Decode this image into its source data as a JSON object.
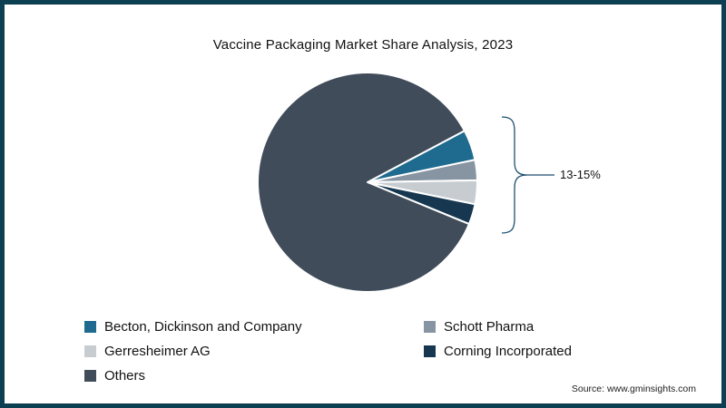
{
  "frame": {
    "border_color": "#0d3f52"
  },
  "chart_data": {
    "type": "pie",
    "title": "Vaccine Packaging Market Share Analysis, 2023",
    "units": "percent",
    "start_angle_deg": -28,
    "legend_position": "bottom",
    "series": [
      {
        "name": "Becton, Dickinson and Company",
        "value": 4.5,
        "color": "#1f6a8f"
      },
      {
        "name": "Schott Pharma",
        "value": 3.0,
        "color": "#8795a3"
      },
      {
        "name": "Gerresheimer AG",
        "value": 3.5,
        "color": "#c7ccd1"
      },
      {
        "name": "Corning Incorporated",
        "value": 3.0,
        "color": "#16374f"
      },
      {
        "name": "Others",
        "value": 86.0,
        "color": "#404c5a"
      }
    ],
    "annotation": {
      "label": "13-15%",
      "line_color": "#1d4f6e",
      "applies_to": [
        "Becton, Dickinson and Company",
        "Schott Pharma",
        "Gerresheimer AG",
        "Corning Incorporated"
      ]
    }
  },
  "source": "Source: www.gminsights.com"
}
